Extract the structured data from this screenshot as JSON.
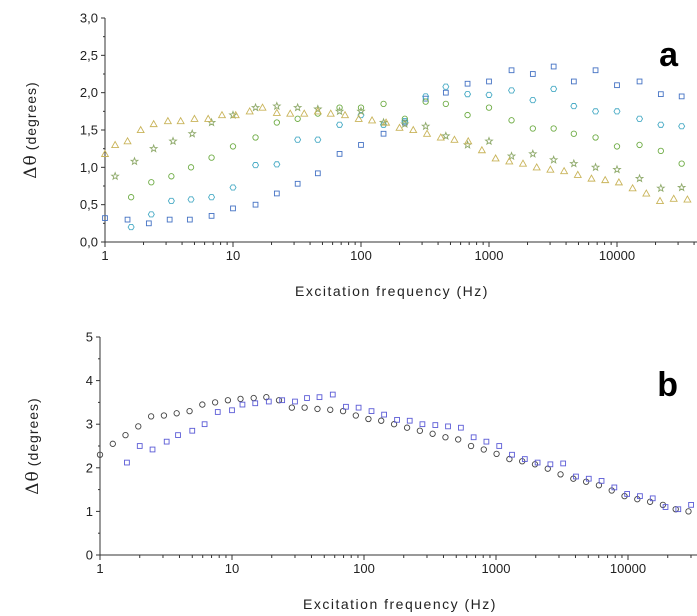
{
  "chart_data": [
    {
      "type": "scatter",
      "panel_label": "a",
      "xlabel": "Excitation frequency (Hz)",
      "ylabel_symbol": "Δθ",
      "ylabel_unit": "(degrees)",
      "xscale": "log",
      "xlim": [
        1,
        40000
      ],
      "ylim": [
        0,
        3.0
      ],
      "xticks": [
        1,
        10,
        100,
        1000,
        10000
      ],
      "xtick_labels": [
        "1",
        "10",
        "100",
        "1000",
        "10000"
      ],
      "yticks": [
        0,
        0.5,
        1.0,
        1.5,
        2.0,
        2.5,
        3.0
      ],
      "ytick_labels": [
        "0,0",
        "0,5",
        "1,0",
        "1,5",
        "2,0",
        "2,5",
        "3,0"
      ],
      "grid": false,
      "series": [
        {
          "marker": "square",
          "color": "#4472c4",
          "points": [
            [
              1.0,
              0.32
            ],
            [
              1.5,
              0.3
            ],
            [
              2.2,
              0.25
            ],
            [
              3.2,
              0.3
            ],
            [
              4.6,
              0.3
            ],
            [
              6.8,
              0.35
            ],
            [
              10,
              0.45
            ],
            [
              15,
              0.5
            ],
            [
              22,
              0.65
            ],
            [
              32,
              0.78
            ],
            [
              46,
              0.92
            ],
            [
              68,
              1.18
            ],
            [
              100,
              1.3
            ],
            [
              150,
              1.45
            ],
            [
              220,
              1.6
            ],
            [
              320,
              1.92
            ],
            [
              460,
              2.0
            ],
            [
              680,
              2.12
            ],
            [
              1000,
              2.15
            ],
            [
              1500,
              2.3
            ],
            [
              2200,
              2.25
            ],
            [
              3200,
              2.35
            ],
            [
              4600,
              2.15
            ],
            [
              6800,
              2.3
            ],
            [
              10000,
              2.1
            ],
            [
              15000,
              2.15
            ],
            [
              22000,
              1.98
            ],
            [
              32000,
              1.95
            ]
          ]
        },
        {
          "marker": "hexagon",
          "color": "#4bacc6",
          "points": [
            [
              1.6,
              0.2
            ],
            [
              2.3,
              0.37
            ],
            [
              3.3,
              0.55
            ],
            [
              4.7,
              0.57
            ],
            [
              6.8,
              0.6
            ],
            [
              10,
              0.73
            ],
            [
              15,
              1.03
            ],
            [
              22,
              1.04
            ],
            [
              32,
              1.37
            ],
            [
              46,
              1.37
            ],
            [
              68,
              1.57
            ],
            [
              100,
              1.7
            ],
            [
              150,
              1.57
            ],
            [
              220,
              1.62
            ],
            [
              320,
              1.95
            ],
            [
              460,
              2.08
            ],
            [
              680,
              1.98
            ],
            [
              1000,
              1.97
            ],
            [
              1500,
              2.03
            ],
            [
              2200,
              1.9
            ],
            [
              3200,
              2.05
            ],
            [
              4600,
              1.82
            ],
            [
              6800,
              1.75
            ],
            [
              10000,
              1.75
            ],
            [
              15000,
              1.65
            ],
            [
              22000,
              1.57
            ],
            [
              32000,
              1.55
            ]
          ]
        },
        {
          "marker": "circle",
          "color": "#70ad47",
          "points": [
            [
              1.6,
              0.6
            ],
            [
              2.3,
              0.8
            ],
            [
              3.3,
              0.88
            ],
            [
              4.7,
              1.0
            ],
            [
              6.8,
              1.13
            ],
            [
              10,
              1.28
            ],
            [
              15,
              1.4
            ],
            [
              22,
              1.6
            ],
            [
              32,
              1.65
            ],
            [
              46,
              1.72
            ],
            [
              68,
              1.8
            ],
            [
              100,
              1.8
            ],
            [
              150,
              1.85
            ],
            [
              220,
              1.65
            ],
            [
              320,
              1.88
            ],
            [
              460,
              1.85
            ],
            [
              680,
              1.7
            ],
            [
              1000,
              1.8
            ],
            [
              1500,
              1.63
            ],
            [
              2200,
              1.52
            ],
            [
              3200,
              1.52
            ],
            [
              4600,
              1.45
            ],
            [
              6800,
              1.4
            ],
            [
              10000,
              1.28
            ],
            [
              15000,
              1.3
            ],
            [
              22000,
              1.22
            ],
            [
              32000,
              1.05
            ]
          ]
        },
        {
          "marker": "star",
          "color": "#8faa6b",
          "points": [
            [
              1.2,
              0.88
            ],
            [
              1.7,
              1.08
            ],
            [
              2.4,
              1.25
            ],
            [
              3.4,
              1.35
            ],
            [
              4.8,
              1.45
            ],
            [
              6.8,
              1.6
            ],
            [
              10,
              1.7
            ],
            [
              15,
              1.8
            ],
            [
              22,
              1.82
            ],
            [
              32,
              1.8
            ],
            [
              46,
              1.78
            ],
            [
              68,
              1.75
            ],
            [
              100,
              1.75
            ],
            [
              150,
              1.6
            ],
            [
              220,
              1.58
            ],
            [
              320,
              1.55
            ],
            [
              460,
              1.42
            ],
            [
              680,
              1.3
            ],
            [
              1000,
              1.35
            ],
            [
              1500,
              1.15
            ],
            [
              2200,
              1.18
            ],
            [
              3200,
              1.1
            ],
            [
              4600,
              1.05
            ],
            [
              6800,
              1.0
            ],
            [
              10000,
              0.97
            ],
            [
              15000,
              0.85
            ],
            [
              22000,
              0.72
            ],
            [
              32000,
              0.73
            ]
          ]
        },
        {
          "marker": "triangle",
          "color": "#c9b45a",
          "points": [
            [
              1.0,
              1.18
            ],
            [
              1.2,
              1.3
            ],
            [
              1.5,
              1.35
            ],
            [
              1.9,
              1.5
            ],
            [
              2.4,
              1.58
            ],
            [
              3.1,
              1.62
            ],
            [
              3.9,
              1.62
            ],
            [
              5.0,
              1.65
            ],
            [
              6.4,
              1.65
            ],
            [
              8.2,
              1.7
            ],
            [
              10.5,
              1.7
            ],
            [
              13.5,
              1.75
            ],
            [
              17,
              1.8
            ],
            [
              22,
              1.73
            ],
            [
              28,
              1.72
            ],
            [
              36,
              1.72
            ],
            [
              46,
              1.75
            ],
            [
              58,
              1.72
            ],
            [
              75,
              1.7
            ],
            [
              96,
              1.65
            ],
            [
              122,
              1.63
            ],
            [
              157,
              1.6
            ],
            [
              200,
              1.53
            ],
            [
              256,
              1.5
            ],
            [
              328,
              1.45
            ],
            [
              420,
              1.4
            ],
            [
              537,
              1.37
            ],
            [
              688,
              1.35
            ],
            [
              880,
              1.23
            ],
            [
              1126,
              1.12
            ],
            [
              1440,
              1.08
            ],
            [
              1843,
              1.05
            ],
            [
              2358,
              1.0
            ],
            [
              3017,
              0.97
            ],
            [
              3861,
              0.95
            ],
            [
              4940,
              0.9
            ],
            [
              6320,
              0.85
            ],
            [
              8087,
              0.83
            ],
            [
              10348,
              0.8
            ],
            [
              13240,
              0.72
            ],
            [
              16940,
              0.65
            ],
            [
              21676,
              0.55
            ],
            [
              27736,
              0.58
            ],
            [
              35490,
              0.57
            ]
          ]
        }
      ]
    },
    {
      "type": "scatter",
      "panel_label": "b",
      "xlabel": "Excitation frequency (Hz)",
      "ylabel_symbol": "Δθ",
      "ylabel_unit": "(degrees)",
      "xscale": "log",
      "xlim": [
        1,
        40000
      ],
      "ylim": [
        0,
        5
      ],
      "xticks": [
        1,
        10,
        100,
        1000,
        10000
      ],
      "xtick_labels": [
        "1",
        "10",
        "100",
        "1000",
        "10000"
      ],
      "yticks": [
        0,
        1,
        2,
        3,
        4,
        5
      ],
      "ytick_labels": [
        "0",
        "1",
        "2",
        "3",
        "4",
        "5"
      ],
      "grid": false,
      "series": [
        {
          "marker": "circle",
          "color": "#444444",
          "points": [
            [
              1.0,
              2.3
            ],
            [
              1.25,
              2.55
            ],
            [
              1.56,
              2.75
            ],
            [
              1.95,
              2.95
            ],
            [
              2.44,
              3.18
            ],
            [
              3.05,
              3.2
            ],
            [
              3.81,
              3.25
            ],
            [
              4.77,
              3.3
            ],
            [
              5.96,
              3.45
            ],
            [
              7.45,
              3.5
            ],
            [
              9.31,
              3.55
            ],
            [
              11.6,
              3.58
            ],
            [
              14.6,
              3.6
            ],
            [
              18.2,
              3.62
            ],
            [
              22.7,
              3.55
            ],
            [
              28.4,
              3.38
            ],
            [
              35.5,
              3.38
            ],
            [
              44.4,
              3.35
            ],
            [
              55.5,
              3.33
            ],
            [
              69.4,
              3.3
            ],
            [
              86.7,
              3.2
            ],
            [
              108,
              3.12
            ],
            [
              135,
              3.08
            ],
            [
              169,
              3.0
            ],
            [
              212,
              2.92
            ],
            [
              265,
              2.85
            ],
            [
              331,
              2.78
            ],
            [
              414,
              2.7
            ],
            [
              517,
              2.65
            ],
            [
              647,
              2.5
            ],
            [
              808,
              2.42
            ],
            [
              1010,
              2.32
            ],
            [
              1263,
              2.2
            ],
            [
              1579,
              2.15
            ],
            [
              1973,
              2.08
            ],
            [
              2467,
              1.98
            ],
            [
              3083,
              1.85
            ],
            [
              3854,
              1.75
            ],
            [
              4818,
              1.68
            ],
            [
              6022,
              1.6
            ],
            [
              7528,
              1.48
            ],
            [
              9410,
              1.35
            ],
            [
              11762,
              1.28
            ],
            [
              14703,
              1.22
            ],
            [
              18379,
              1.15
            ],
            [
              22973,
              1.05
            ],
            [
              28717,
              1.0
            ],
            [
              35896,
              0.92
            ]
          ]
        },
        {
          "marker": "square",
          "color": "#5b5bd6",
          "points": [
            [
              1.6,
              2.12
            ],
            [
              2.0,
              2.5
            ],
            [
              2.5,
              2.42
            ],
            [
              3.2,
              2.6
            ],
            [
              3.9,
              2.75
            ],
            [
              5.0,
              2.85
            ],
            [
              6.2,
              3.0
            ],
            [
              7.8,
              3.28
            ],
            [
              10,
              3.32
            ],
            [
              12,
              3.45
            ],
            [
              15,
              3.48
            ],
            [
              19,
              3.52
            ],
            [
              24,
              3.55
            ],
            [
              30,
              3.52
            ],
            [
              37,
              3.6
            ],
            [
              46,
              3.62
            ],
            [
              58,
              3.68
            ],
            [
              73,
              3.4
            ],
            [
              91,
              3.38
            ],
            [
              114,
              3.3
            ],
            [
              142,
              3.22
            ],
            [
              178,
              3.1
            ],
            [
              222,
              3.08
            ],
            [
              277,
              3.0
            ],
            [
              347,
              2.98
            ],
            [
              433,
              2.95
            ],
            [
              542,
              2.92
            ],
            [
              677,
              2.7
            ],
            [
              846,
              2.6
            ],
            [
              1058,
              2.5
            ],
            [
              1322,
              2.3
            ],
            [
              1653,
              2.2
            ],
            [
              2066,
              2.12
            ],
            [
              2582,
              2.08
            ],
            [
              3228,
              2.1
            ],
            [
              4035,
              1.8
            ],
            [
              5044,
              1.75
            ],
            [
              6305,
              1.7
            ],
            [
              7881,
              1.55
            ],
            [
              9851,
              1.4
            ],
            [
              12314,
              1.35
            ],
            [
              15392,
              1.3
            ],
            [
              19240,
              1.1
            ],
            [
              24050,
              1.05
            ],
            [
              30063,
              1.15
            ],
            [
              37578,
              1.2
            ]
          ]
        }
      ]
    }
  ]
}
